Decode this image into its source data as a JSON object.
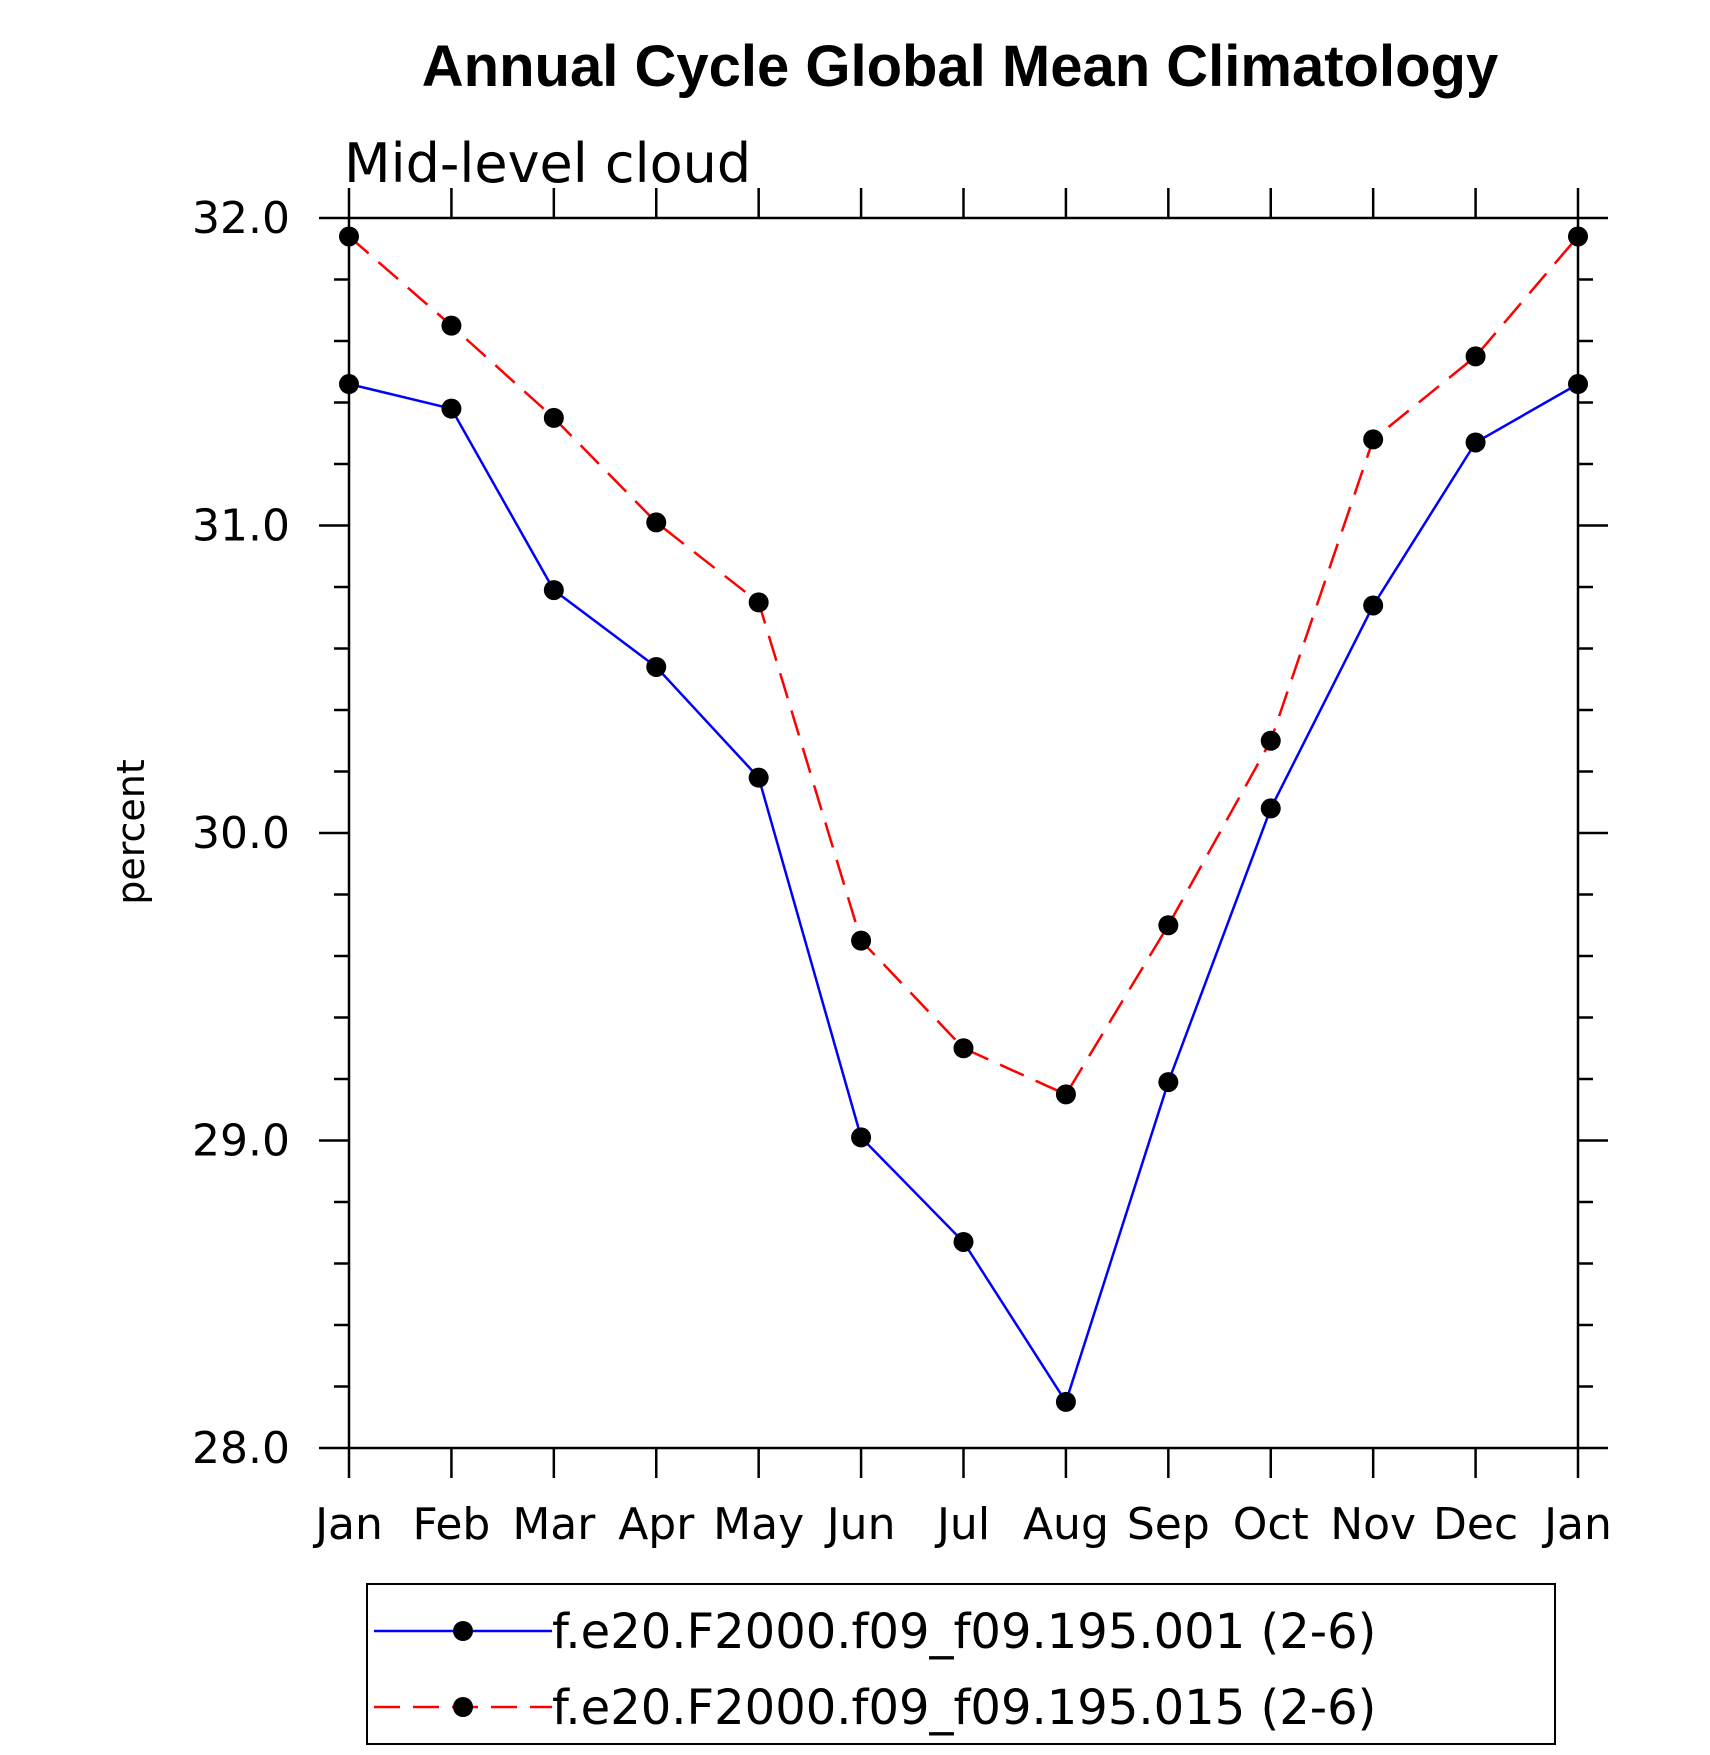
{
  "chart_data": {
    "type": "line",
    "title": "Annual Cycle Global Mean Climatology",
    "subtitle": "Mid-level cloud",
    "xlabel": "",
    "ylabel": "percent",
    "categories": [
      "Jan",
      "Feb",
      "Mar",
      "Apr",
      "May",
      "Jun",
      "Jul",
      "Aug",
      "Sep",
      "Oct",
      "Nov",
      "Dec",
      "Jan"
    ],
    "ylim": [
      28.0,
      32.0
    ],
    "yticks": [
      28.0,
      29.0,
      30.0,
      31.0,
      32.0
    ],
    "ytick_labels": [
      "28.0",
      "29.0",
      "30.0",
      "31.0",
      "32.0"
    ],
    "minor_ytick_step": 0.2,
    "grid": false,
    "legend_position": "bottom-center",
    "series": [
      {
        "name": "f.e20.F2000.f09_f09.195.001 (2-6)",
        "color": "#0000ff",
        "line_style": "solid",
        "marker": "filled-circle",
        "marker_color": "#000000",
        "values": [
          31.46,
          31.38,
          30.79,
          30.54,
          30.18,
          29.01,
          28.67,
          28.15,
          29.19,
          30.08,
          30.74,
          31.27,
          31.46
        ]
      },
      {
        "name": "f.e20.F2000.f09_f09.195.015 (2-6)",
        "color": "#ff0000",
        "line_style": "dashed",
        "marker": "filled-circle",
        "marker_color": "#000000",
        "values": [
          31.94,
          31.65,
          31.35,
          31.01,
          30.75,
          29.65,
          29.3,
          29.15,
          29.7,
          30.3,
          31.28,
          31.55,
          31.94
        ]
      }
    ]
  }
}
